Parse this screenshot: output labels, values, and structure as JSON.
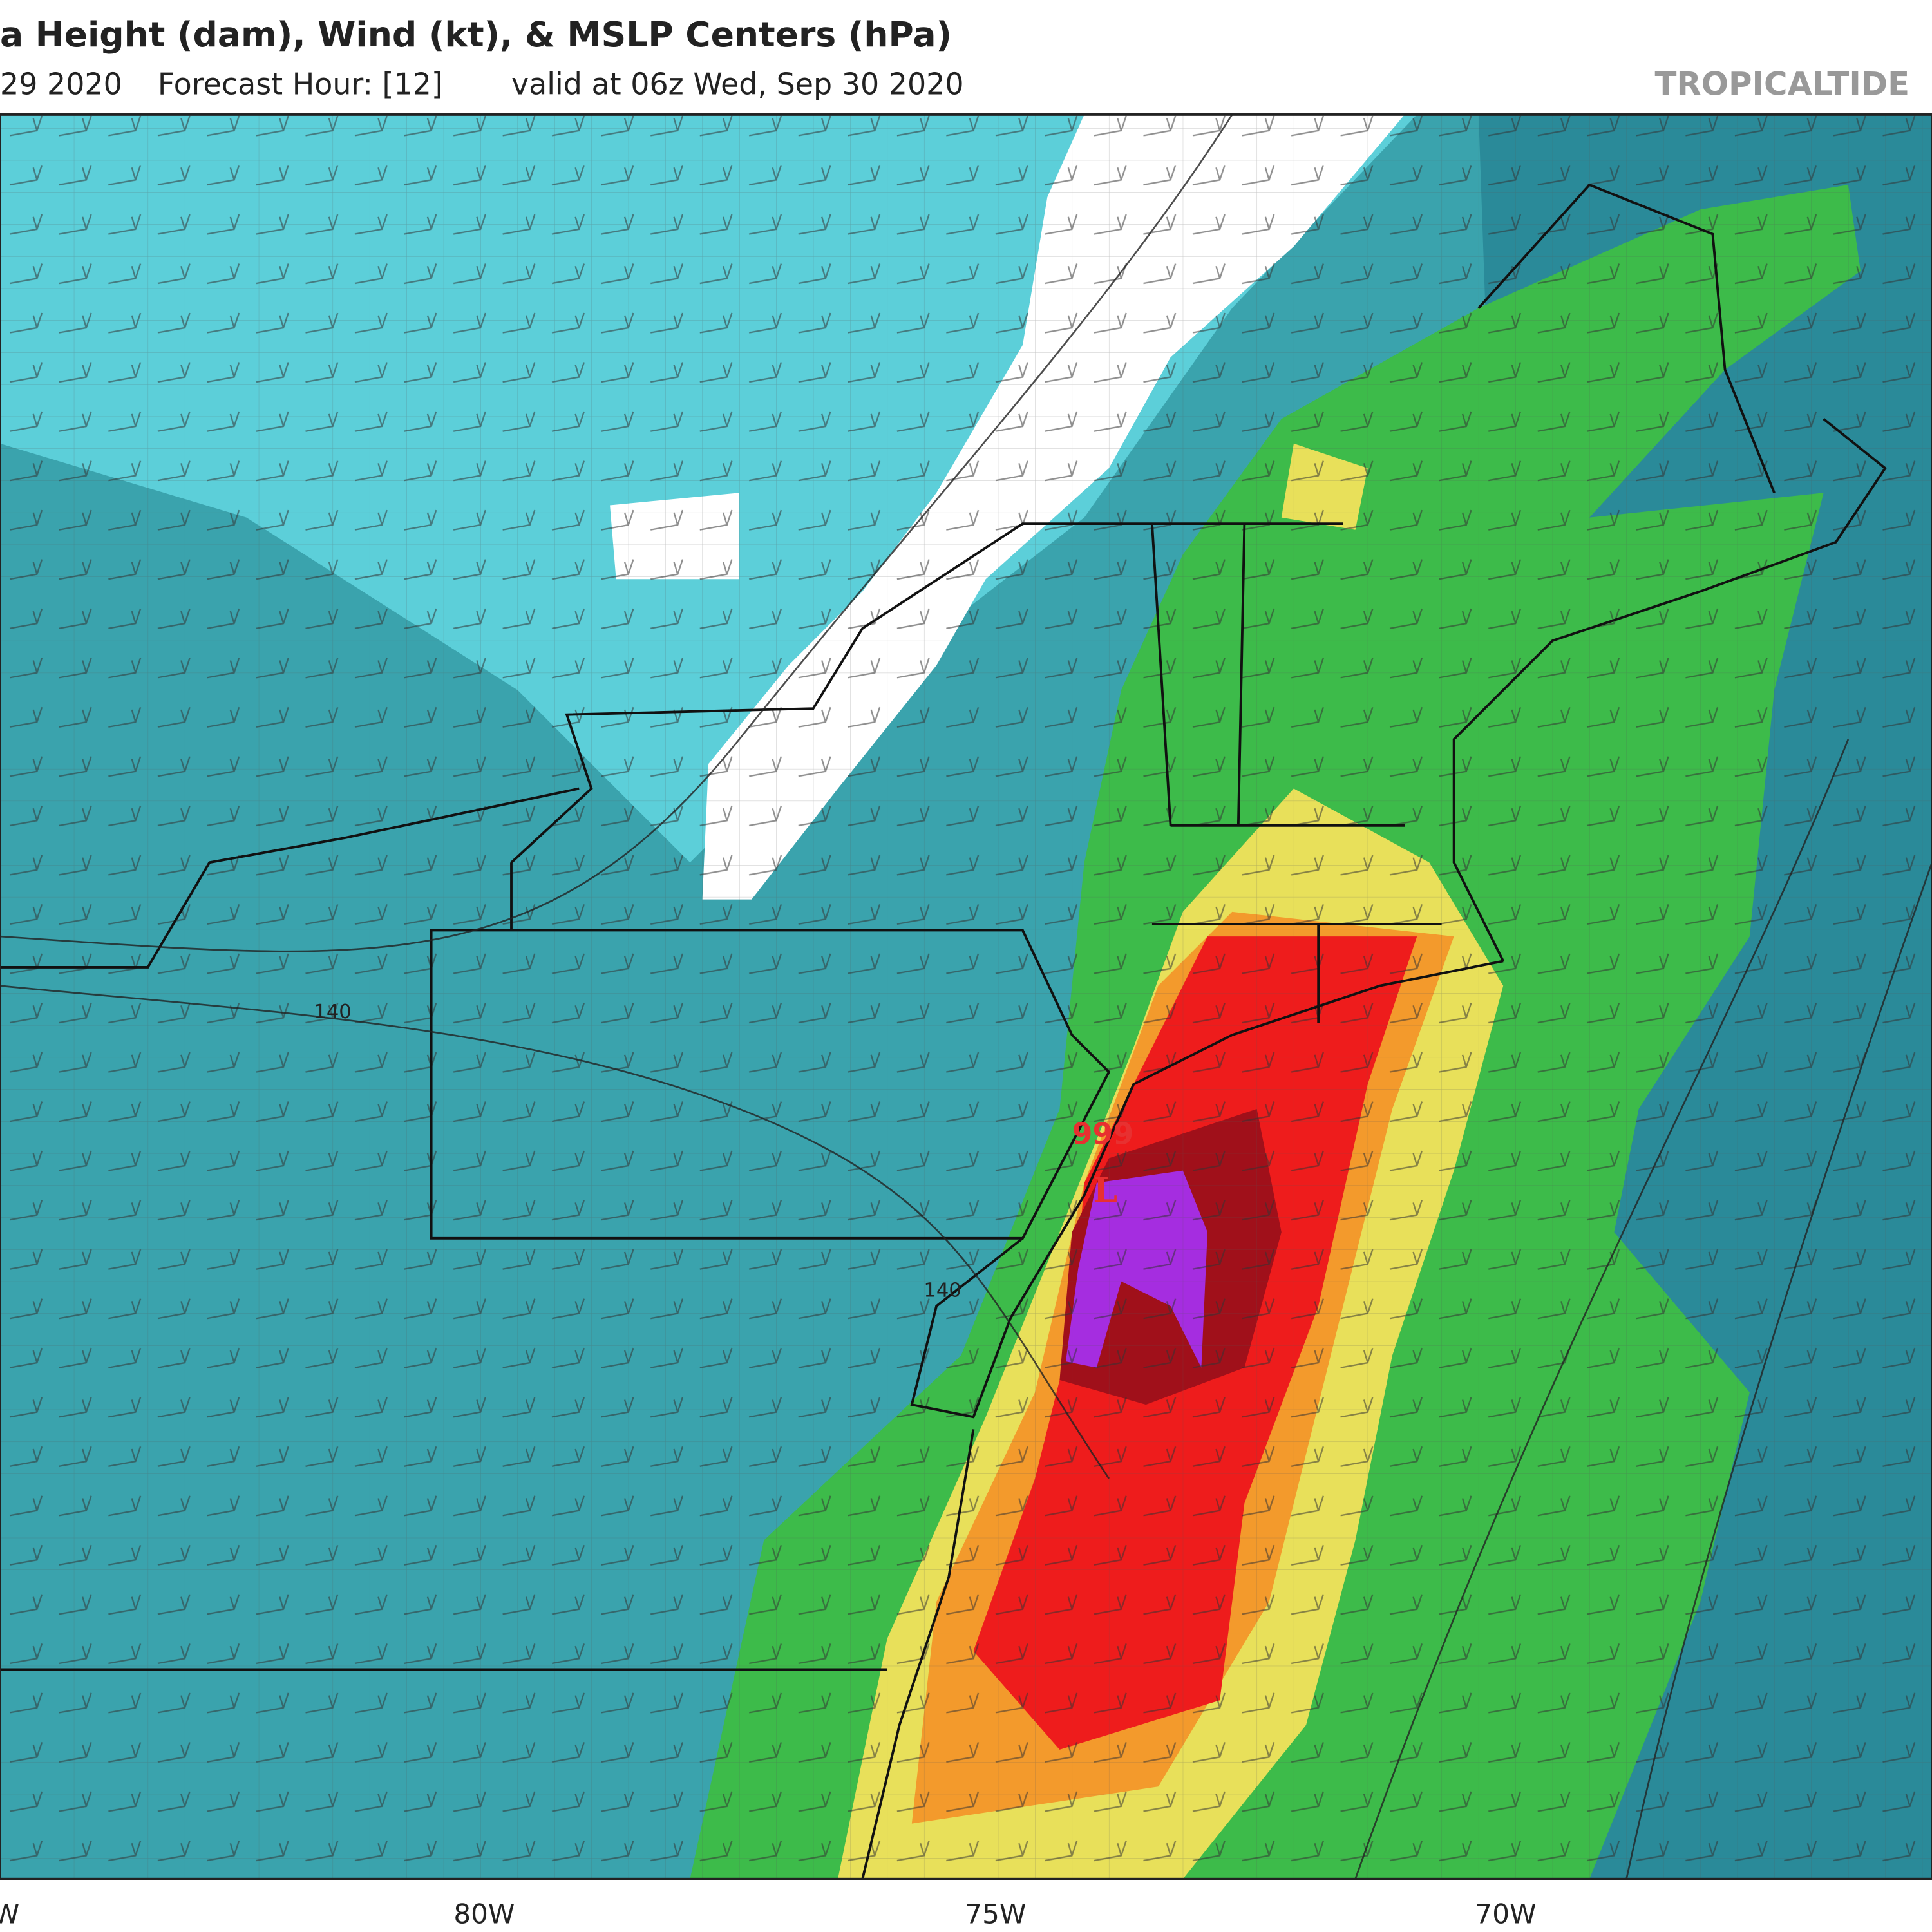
{
  "header": {
    "title": "a Height (dam), Wind (kt), & MSLP Centers (hPa)",
    "run": "29 2020",
    "forecast_hour": "Forecast Hour: [12]",
    "valid": "valid at 06z Wed, Sep 30 2020",
    "brand": "TROPICALTIDE"
  },
  "map": {
    "lon_labels": [
      "W",
      "80W",
      "75W",
      "70W"
    ],
    "contour_labels": [
      "140",
      "140"
    ],
    "pressure_center": {
      "value": "999",
      "symbol": "L"
    }
  }
}
